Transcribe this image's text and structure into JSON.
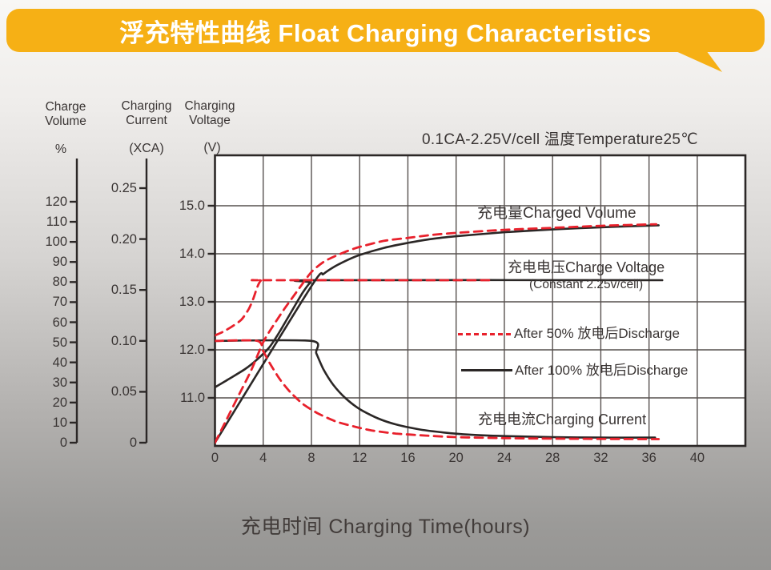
{
  "banner": {
    "title": "浮充特性曲线 Float Charging Characteristics",
    "color": "#f6b015"
  },
  "condition": "0.1CA-2.25V/cell   温度Temperature25℃",
  "x_axis": {
    "title": "充电时间 Charging Time(hours)",
    "ticks": [
      0,
      4,
      8,
      12,
      16,
      20,
      24,
      28,
      32,
      36,
      40
    ],
    "range_hours": [
      0,
      44
    ]
  },
  "volume_axis": {
    "header_line1": "Charge",
    "header_line2": "Volume",
    "unit": "%",
    "ticks": [
      0,
      10,
      20,
      30,
      40,
      50,
      60,
      70,
      80,
      90,
      100,
      110,
      120
    ]
  },
  "current_axis": {
    "header_line1": "Charging",
    "header_line2": "Current",
    "unit": "(XCA)",
    "ticks": [
      "0",
      "0.05",
      "0.10",
      "0.15",
      "0.20",
      "0.25"
    ]
  },
  "voltage_axis": {
    "header_line1": "Charging",
    "header_line2": "Voltage",
    "unit": "(V)",
    "ticks": [
      "11.0",
      "12.0",
      "13.0",
      "14.0",
      "15.0"
    ]
  },
  "labels": {
    "charged_volume": "充电量Charged Volume",
    "charge_voltage": "充电电压Charge Voltage",
    "charge_voltage_sub": "(Constant 2.25v/cell)",
    "charging_current": "充电电流Charging Current",
    "legend_50": "After 50% 放电后Discharge",
    "legend_100": "After 100% 放电后Discharge"
  },
  "colors": {
    "red": "#e8212c",
    "black": "#2b2726",
    "grid": "#57514f"
  },
  "chart_data": {
    "type": "line",
    "title": "浮充特性曲线 Float Charging Characteristics",
    "condition": "0.1CA-2.25V/cell 温度Temperature25℃",
    "xlabel": "充电时间 Charging Time(hours)",
    "x_ticks": [
      0,
      4,
      8,
      12,
      16,
      20,
      24,
      28,
      32,
      36,
      40
    ],
    "x_range_hours": [
      0,
      44
    ],
    "y_axes": {
      "percent": {
        "label": "Charge Volume (%)",
        "range": [
          0,
          120
        ],
        "ticks": [
          0,
          10,
          20,
          30,
          40,
          50,
          60,
          70,
          80,
          90,
          100,
          110,
          120
        ]
      },
      "current": {
        "label": "Charging Current (XCA)",
        "range": [
          0,
          0.25
        ],
        "ticks": [
          0,
          0.05,
          0.1,
          0.15,
          0.2,
          0.25
        ]
      },
      "voltage": {
        "label": "Charging Voltage (V)",
        "range": [
          10,
          16
        ],
        "ticks": [
          11.0,
          12.0,
          13.0,
          14.0,
          15.0
        ]
      }
    },
    "grid": true,
    "legend_position": "inside-right",
    "series": [
      {
        "id": "charged-volume-100-discharge",
        "name": "充电量 Charged Volume (After 100% 放电后Discharge)",
        "axis": "percent",
        "style": "solid",
        "color": "#2b2726",
        "points": [
          [
            0,
            0
          ],
          [
            8,
            78
          ],
          [
            9,
            84
          ],
          [
            10,
            88
          ],
          [
            11,
            91
          ],
          [
            12,
            93.5
          ],
          [
            14,
            97
          ],
          [
            16,
            99.5
          ],
          [
            18,
            101.5
          ],
          [
            20,
            102.8
          ],
          [
            24,
            104.8
          ],
          [
            28,
            106.2
          ],
          [
            32,
            107.3
          ],
          [
            36.8,
            108.3
          ]
        ]
      },
      {
        "id": "charge-voltage-100-discharge",
        "name": "充电电压 Charge Voltage (After 100% 放电后Discharge, Constant 2.25v/cell)",
        "axis": "voltage",
        "style": "solid",
        "color": "#2b2726",
        "points": [
          [
            0,
            11.22
          ],
          [
            1.2,
            11.4
          ],
          [
            2.5,
            11.6
          ],
          [
            3.5,
            11.8
          ],
          [
            4.5,
            12.05
          ],
          [
            5.3,
            12.35
          ],
          [
            6,
            12.65
          ],
          [
            6.7,
            12.95
          ],
          [
            7.3,
            13.2
          ],
          [
            7.9,
            13.4
          ],
          [
            8.3,
            13.45
          ],
          [
            37.1,
            13.45
          ]
        ]
      },
      {
        "id": "charging-current-100-discharge",
        "name": "充电电流 Charging Current (After 100% 放电后Discharge)",
        "axis": "current",
        "style": "solid",
        "color": "#2b2726",
        "points": [
          [
            0,
            0.1
          ],
          [
            8,
            0.1
          ],
          [
            8.4,
            0.088
          ],
          [
            9,
            0.072
          ],
          [
            9.8,
            0.057
          ],
          [
            10.8,
            0.044
          ],
          [
            12,
            0.033
          ],
          [
            13.5,
            0.024
          ],
          [
            15,
            0.018
          ],
          [
            17,
            0.013
          ],
          [
            19,
            0.01
          ],
          [
            21,
            0.008
          ],
          [
            24,
            0.0065
          ],
          [
            28,
            0.0055
          ],
          [
            32,
            0.005
          ],
          [
            36.5,
            0.005
          ]
        ]
      },
      {
        "id": "charged-volume-50-discharge",
        "name": "充电量 Charged Volume (After 50% 放电后Discharge)",
        "axis": "percent",
        "style": "dashed",
        "color": "#e8212c",
        "points": [
          [
            0,
            0
          ],
          [
            1,
            12
          ],
          [
            2,
            24
          ],
          [
            3,
            36
          ],
          [
            4,
            50
          ],
          [
            4.8,
            58
          ],
          [
            5.8,
            67
          ],
          [
            7,
            77
          ],
          [
            8,
            85
          ],
          [
            9,
            90
          ],
          [
            10,
            93
          ],
          [
            11,
            95.5
          ],
          [
            12,
            97.5
          ],
          [
            14,
            100.5
          ],
          [
            16,
            102
          ],
          [
            18,
            103.5
          ],
          [
            20,
            104.5
          ],
          [
            24,
            106
          ],
          [
            28,
            107
          ],
          [
            32,
            108
          ],
          [
            36.6,
            108.8
          ]
        ]
      },
      {
        "id": "charge-voltage-50-discharge",
        "name": "充电电压 Charge Voltage (After 50% 放电后Discharge, Constant 2.25v/cell)",
        "axis": "voltage",
        "style": "dashed",
        "color": "#e8212c",
        "points": [
          [
            0,
            12.3
          ],
          [
            0.7,
            12.38
          ],
          [
            1.5,
            12.5
          ],
          [
            2.2,
            12.63
          ],
          [
            2.8,
            12.85
          ],
          [
            3.2,
            13.08
          ],
          [
            3.5,
            13.3
          ],
          [
            3.8,
            13.44
          ],
          [
            4.2,
            13.45
          ],
          [
            22.8,
            13.45
          ]
        ]
      },
      {
        "id": "charging-current-50-discharge",
        "name": "充电电流 Charging Current (After 50% 放电后Discharge)",
        "axis": "current",
        "style": "dashed",
        "color": "#e8212c",
        "points": [
          [
            0,
            0.1
          ],
          [
            3.5,
            0.1
          ],
          [
            4,
            0.09
          ],
          [
            4.6,
            0.077
          ],
          [
            5.4,
            0.062
          ],
          [
            6.3,
            0.049
          ],
          [
            7.3,
            0.038
          ],
          [
            8.5,
            0.029
          ],
          [
            10,
            0.021
          ],
          [
            11.5,
            0.016
          ],
          [
            13,
            0.012
          ],
          [
            15,
            0.009
          ],
          [
            17.5,
            0.007
          ],
          [
            20,
            0.0055
          ],
          [
            24,
            0.0045
          ],
          [
            28,
            0.004
          ],
          [
            36.8,
            0.0035
          ]
        ]
      }
    ]
  }
}
